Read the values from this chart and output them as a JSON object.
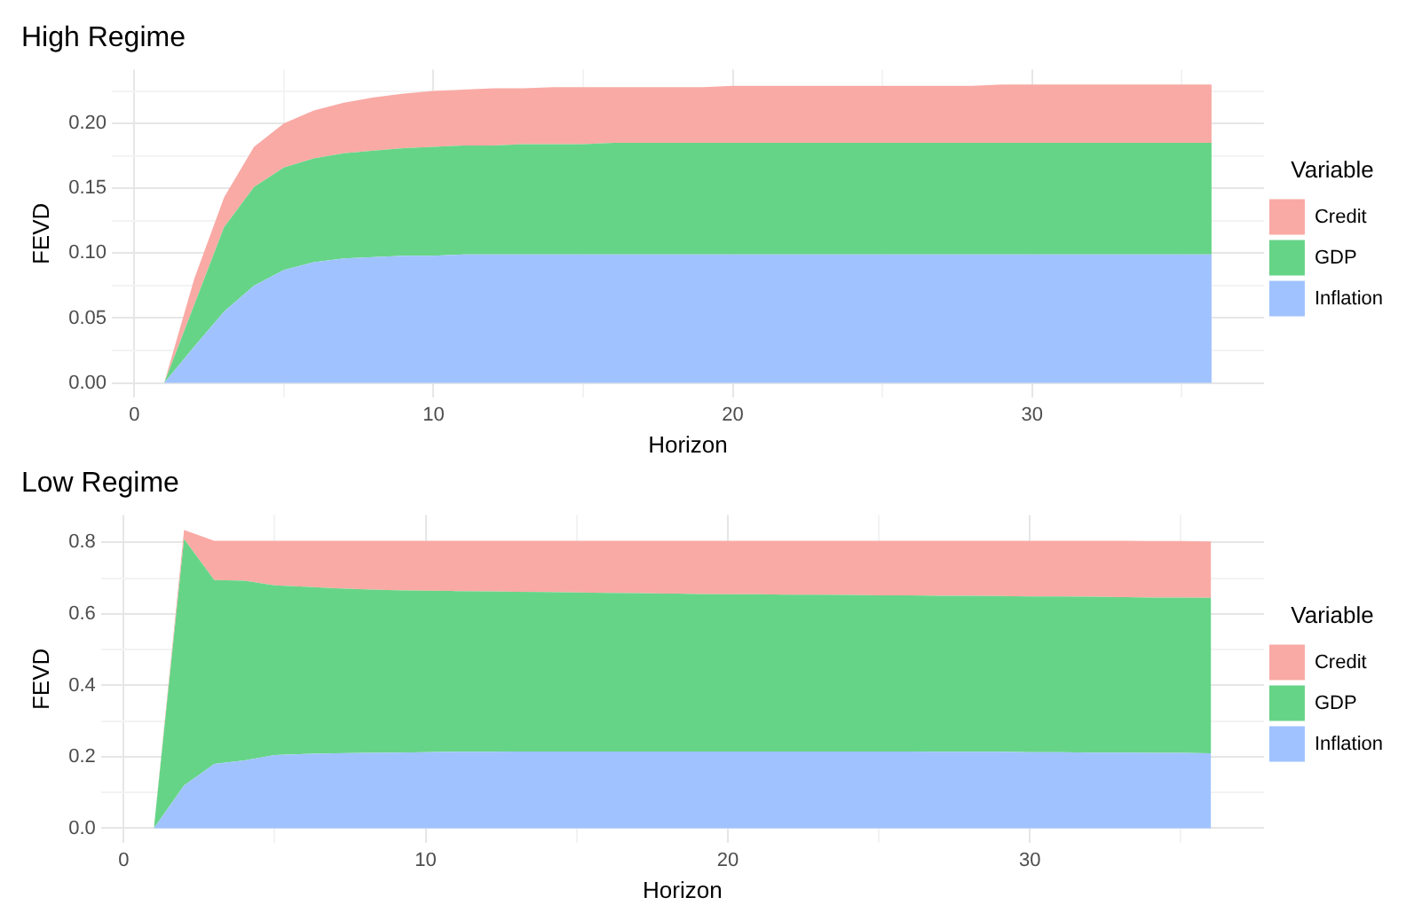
{
  "chart_data": [
    {
      "type": "area",
      "title": "High Regime",
      "xlabel": "Horizon",
      "ylabel": "FEVD",
      "legend_title": "Variable",
      "legend": "right",
      "stacked": true,
      "grid": true,
      "x": [
        1,
        2,
        3,
        4,
        5,
        6,
        7,
        8,
        9,
        10,
        11,
        12,
        13,
        14,
        15,
        16,
        17,
        18,
        19,
        20,
        21,
        22,
        23,
        24,
        25,
        26,
        27,
        28,
        29,
        30,
        31,
        32,
        33,
        34,
        35,
        36
      ],
      "series": [
        {
          "name": "Inflation",
          "color": "#a0c3ff",
          "values": [
            0,
            0.028,
            0.055,
            0.075,
            0.087,
            0.093,
            0.096,
            0.097,
            0.098,
            0.098,
            0.099,
            0.099,
            0.099,
            0.099,
            0.099,
            0.099,
            0.099,
            0.099,
            0.099,
            0.099,
            0.099,
            0.099,
            0.099,
            0.099,
            0.099,
            0.099,
            0.099,
            0.099,
            0.099,
            0.099,
            0.099,
            0.099,
            0.099,
            0.099,
            0.099,
            0.099
          ]
        },
        {
          "name": "GDP",
          "color": "#66d487",
          "values": [
            0,
            0.032,
            0.065,
            0.076,
            0.079,
            0.08,
            0.081,
            0.082,
            0.083,
            0.084,
            0.084,
            0.084,
            0.085,
            0.085,
            0.085,
            0.086,
            0.086,
            0.086,
            0.086,
            0.086,
            0.086,
            0.086,
            0.086,
            0.086,
            0.086,
            0.086,
            0.086,
            0.086,
            0.086,
            0.086,
            0.086,
            0.086,
            0.086,
            0.086,
            0.086,
            0.086
          ]
        },
        {
          "name": "Credit",
          "color": "#f9aaa5",
          "values": [
            0,
            0.02,
            0.023,
            0.031,
            0.034,
            0.037,
            0.039,
            0.041,
            0.042,
            0.043,
            0.043,
            0.044,
            0.043,
            0.044,
            0.044,
            0.043,
            0.043,
            0.043,
            0.043,
            0.044,
            0.044,
            0.044,
            0.044,
            0.044,
            0.044,
            0.044,
            0.044,
            0.044,
            0.045,
            0.045,
            0.045,
            0.045,
            0.045,
            0.045,
            0.045,
            0.045
          ]
        }
      ],
      "xlim": [
        -0.75,
        37.75
      ],
      "xticks": [
        0,
        {
          "value": 5,
          "label": null
        },
        10,
        {
          "value": 15,
          "label": null
        },
        20,
        {
          "value": 25,
          "label": null
        },
        30,
        {
          "value": 35,
          "label": null
        }
      ],
      "ylim": [
        -0.0115,
        0.2415
      ],
      "yticks": [
        {
          "value": 0,
          "label": "0.00"
        },
        {
          "value": 0.025,
          "label": null
        },
        {
          "value": 0.05,
          "label": "0.05"
        },
        {
          "value": 0.075,
          "label": null
        },
        {
          "value": 0.1,
          "label": "0.10"
        },
        {
          "value": 0.125,
          "label": null
        },
        {
          "value": 0.15,
          "label": "0.15"
        },
        {
          "value": 0.175,
          "label": null
        },
        {
          "value": 0.2,
          "label": "0.20"
        },
        {
          "value": 0.225,
          "label": null
        }
      ]
    },
    {
      "type": "area",
      "title": "Low Regime",
      "xlabel": "Horizon",
      "ylabel": "FEVD",
      "legend_title": "Variable",
      "legend": "right",
      "stacked": true,
      "grid": true,
      "x": [
        1,
        2,
        3,
        4,
        5,
        6,
        7,
        8,
        9,
        10,
        11,
        12,
        13,
        14,
        15,
        16,
        17,
        18,
        19,
        20,
        21,
        22,
        23,
        24,
        25,
        26,
        27,
        28,
        29,
        30,
        31,
        32,
        33,
        34,
        35,
        36
      ],
      "series": [
        {
          "name": "Inflation",
          "color": "#a0c3ff",
          "values": [
            0,
            0.12,
            0.18,
            0.19,
            0.205,
            0.208,
            0.21,
            0.211,
            0.212,
            0.213,
            0.214,
            0.214,
            0.215,
            0.215,
            0.215,
            0.215,
            0.215,
            0.215,
            0.215,
            0.215,
            0.215,
            0.215,
            0.215,
            0.215,
            0.215,
            0.215,
            0.214,
            0.214,
            0.214,
            0.213,
            0.213,
            0.212,
            0.212,
            0.211,
            0.211,
            0.21
          ]
        },
        {
          "name": "GDP",
          "color": "#66d487",
          "values": [
            0,
            0.69,
            0.515,
            0.503,
            0.475,
            0.468,
            0.462,
            0.458,
            0.454,
            0.452,
            0.45,
            0.449,
            0.447,
            0.446,
            0.445,
            0.444,
            0.443,
            0.442,
            0.441,
            0.44,
            0.44,
            0.439,
            0.439,
            0.438,
            0.437,
            0.437,
            0.437,
            0.437,
            0.436,
            0.436,
            0.436,
            0.436,
            0.435,
            0.435,
            0.435,
            0.435
          ]
        },
        {
          "name": "Credit",
          "color": "#f9aaa5",
          "values": [
            0,
            0.025,
            0.11,
            0.112,
            0.125,
            0.129,
            0.133,
            0.136,
            0.139,
            0.14,
            0.141,
            0.142,
            0.143,
            0.144,
            0.145,
            0.146,
            0.147,
            0.148,
            0.149,
            0.15,
            0.15,
            0.151,
            0.151,
            0.152,
            0.153,
            0.153,
            0.154,
            0.154,
            0.155,
            0.156,
            0.156,
            0.157,
            0.158,
            0.158,
            0.158,
            0.158
          ]
        }
      ],
      "xlim": [
        -0.75,
        37.75
      ],
      "xticks": [
        0,
        {
          "value": 5,
          "label": null
        },
        10,
        {
          "value": 15,
          "label": null
        },
        20,
        {
          "value": 25,
          "label": null
        },
        30,
        {
          "value": 35,
          "label": null
        }
      ],
      "ylim": [
        -0.042,
        0.877
      ],
      "yticks": [
        {
          "value": 0,
          "label": "0.0"
        },
        {
          "value": 0.1,
          "label": null
        },
        {
          "value": 0.2,
          "label": "0.2"
        },
        {
          "value": 0.3,
          "label": null
        },
        {
          "value": 0.4,
          "label": "0.4"
        },
        {
          "value": 0.5,
          "label": null
        },
        {
          "value": 0.6,
          "label": "0.6"
        },
        {
          "value": 0.7,
          "label": null
        },
        {
          "value": 0.8,
          "label": "0.8"
        }
      ]
    }
  ]
}
